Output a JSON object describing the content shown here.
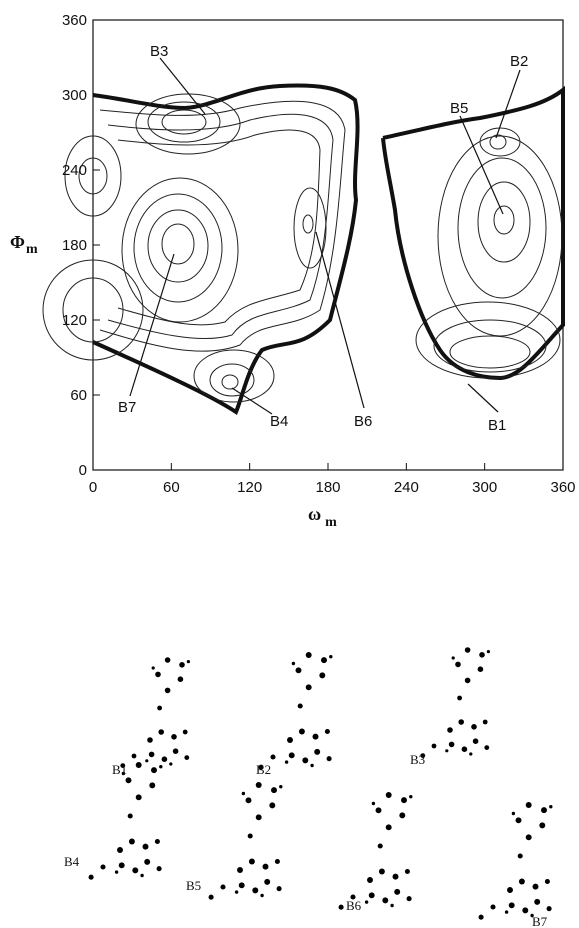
{
  "chart_data": {
    "type": "contour",
    "xlabel": "ω",
    "xlabel_sub": "m",
    "ylabel": "Φ",
    "ylabel_sub": "m",
    "xlim": [
      0,
      360
    ],
    "ylim": [
      0,
      360
    ],
    "xticks": [
      0,
      60,
      120,
      180,
      240,
      300,
      360
    ],
    "yticks": [
      0,
      60,
      120,
      180,
      240,
      300,
      360
    ],
    "annotations": [
      "B3",
      "B2",
      "B5",
      "B7",
      "B4",
      "B6",
      "B1"
    ]
  },
  "structure_labels": [
    "B1",
    "B2",
    "B3",
    "B4",
    "B5",
    "B6",
    "B7"
  ]
}
